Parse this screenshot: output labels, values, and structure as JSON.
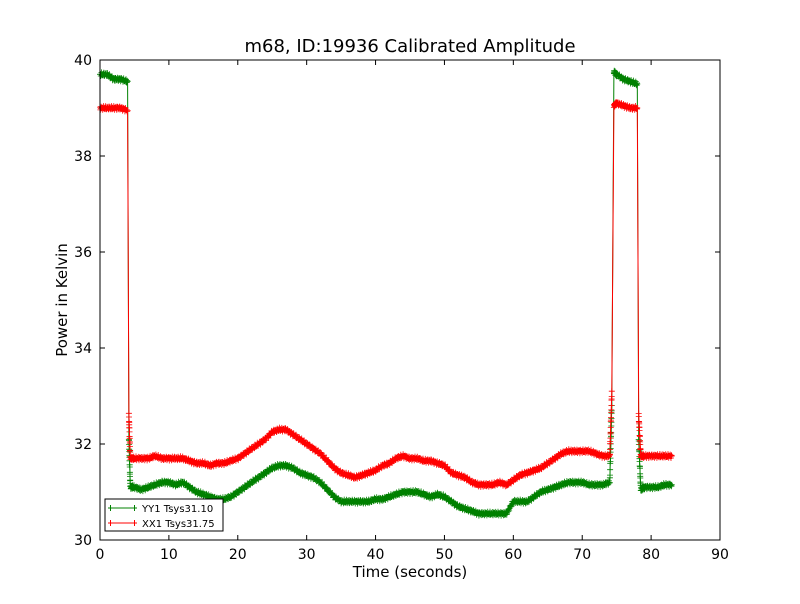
{
  "chart_data": {
    "type": "line",
    "title": "m68, ID:19936 Calibrated Amplitude",
    "xlabel": "Time (seconds)",
    "ylabel": "Power in Kelvin",
    "xlim": [
      0,
      90
    ],
    "ylim": [
      30,
      40
    ],
    "xticks": [
      "0",
      "10",
      "20",
      "30",
      "40",
      "50",
      "60",
      "70",
      "80",
      "90"
    ],
    "yticks": [
      "30",
      "32",
      "34",
      "36",
      "38",
      "40"
    ],
    "grid": false,
    "legend_position": "lower-left",
    "marker": "plus",
    "series": [
      {
        "name": "YY1 Tsys31.10",
        "color": "#008000",
        "x": [
          0,
          1,
          2,
          3,
          4,
          4.2,
          4.4,
          5,
          6,
          7,
          8,
          9,
          10,
          11,
          12,
          13,
          14,
          15,
          16,
          17,
          18,
          19,
          20,
          21,
          22,
          23,
          24,
          25,
          26,
          27,
          28,
          29,
          30,
          31,
          32,
          33,
          34,
          35,
          36,
          37,
          38,
          39,
          40,
          41,
          42,
          43,
          44,
          45,
          46,
          47,
          48,
          49,
          50,
          51,
          52,
          53,
          54,
          55,
          56,
          57,
          58,
          59,
          60,
          61,
          62,
          63,
          64,
          65,
          66,
          67,
          68,
          69,
          70,
          71,
          72,
          73,
          74,
          74.3,
          74.6,
          75,
          76,
          77,
          78,
          78.2,
          78.5,
          79,
          80,
          81,
          82,
          83
        ],
        "values": [
          39.7,
          39.7,
          39.6,
          39.6,
          39.55,
          32.1,
          31.1,
          31.1,
          31.05,
          31.1,
          31.15,
          31.2,
          31.2,
          31.15,
          31.2,
          31.1,
          31.0,
          30.95,
          30.9,
          30.85,
          30.85,
          30.9,
          31.0,
          31.1,
          31.2,
          31.3,
          31.4,
          31.5,
          31.55,
          31.55,
          31.5,
          31.4,
          31.35,
          31.3,
          31.2,
          31.05,
          30.9,
          30.8,
          30.8,
          30.8,
          30.8,
          30.8,
          30.85,
          30.85,
          30.9,
          30.95,
          31.0,
          31.0,
          31.0,
          30.95,
          30.9,
          30.95,
          30.9,
          30.8,
          30.7,
          30.65,
          30.6,
          30.55,
          30.55,
          30.55,
          30.55,
          30.55,
          30.8,
          30.8,
          30.8,
          30.9,
          31.0,
          31.05,
          31.1,
          31.15,
          31.2,
          31.2,
          31.2,
          31.15,
          31.15,
          31.15,
          31.2,
          32.8,
          39.75,
          39.7,
          39.6,
          39.55,
          39.5,
          32.1,
          31.05,
          31.1,
          31.1,
          31.1,
          31.15,
          31.15
        ]
      },
      {
        "name": "XX1 Tsys31.75",
        "color": "#ff0000",
        "x": [
          0,
          1,
          2,
          3,
          4,
          4.2,
          4.4,
          5,
          6,
          7,
          8,
          9,
          10,
          11,
          12,
          13,
          14,
          15,
          16,
          17,
          18,
          19,
          20,
          21,
          22,
          23,
          24,
          25,
          26,
          27,
          28,
          29,
          30,
          31,
          32,
          33,
          34,
          35,
          36,
          37,
          38,
          39,
          40,
          41,
          42,
          43,
          44,
          45,
          46,
          47,
          48,
          49,
          50,
          51,
          52,
          53,
          54,
          55,
          56,
          57,
          58,
          59,
          60,
          61,
          62,
          63,
          64,
          65,
          66,
          67,
          68,
          69,
          70,
          71,
          72,
          73,
          74,
          74.3,
          74.6,
          75,
          76,
          77,
          78,
          78.2,
          78.5,
          79,
          80,
          81,
          82,
          83
        ],
        "values": [
          39.0,
          39.0,
          39.0,
          39.0,
          38.95,
          32.6,
          31.7,
          31.7,
          31.7,
          31.7,
          31.75,
          31.7,
          31.7,
          31.7,
          31.7,
          31.65,
          31.6,
          31.6,
          31.55,
          31.6,
          31.6,
          31.65,
          31.7,
          31.8,
          31.9,
          32.0,
          32.1,
          32.25,
          32.3,
          32.3,
          32.2,
          32.1,
          32.0,
          31.9,
          31.8,
          31.65,
          31.5,
          31.4,
          31.35,
          31.3,
          31.35,
          31.4,
          31.45,
          31.55,
          31.6,
          31.7,
          31.75,
          31.7,
          31.7,
          31.65,
          31.65,
          31.6,
          31.55,
          31.4,
          31.35,
          31.3,
          31.2,
          31.15,
          31.15,
          31.15,
          31.2,
          31.15,
          31.25,
          31.35,
          31.4,
          31.45,
          31.5,
          31.6,
          31.7,
          31.8,
          31.85,
          31.85,
          31.85,
          31.85,
          31.8,
          31.75,
          31.75,
          33.1,
          39.05,
          39.1,
          39.05,
          39.0,
          39.0,
          32.6,
          31.75,
          31.75,
          31.75,
          31.75,
          31.75,
          31.75
        ]
      }
    ]
  }
}
